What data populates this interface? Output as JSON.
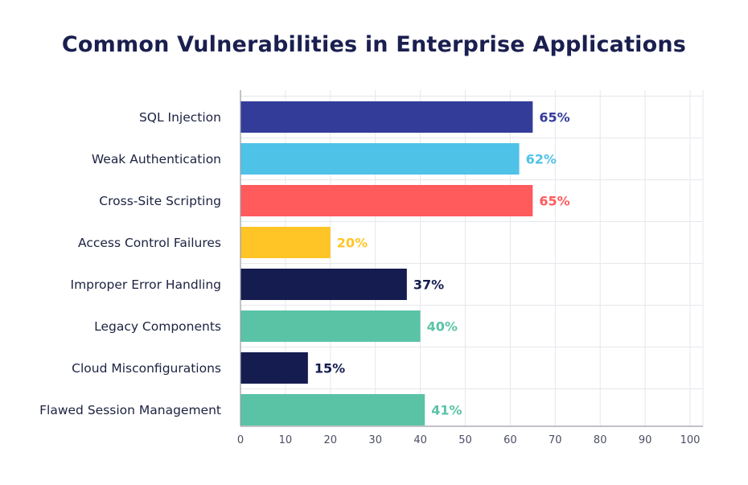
{
  "chart_data": {
    "type": "bar",
    "orientation": "horizontal",
    "title": "Common Vulnerabilities in Enterprise Applications",
    "categories": [
      "SQL Injection",
      "Weak Authentication",
      "Cross-Site Scripting",
      "Access Control Failures",
      "Improper Error Handling",
      "Legacy Components",
      "Cloud Misconfigurations",
      "Flawed Session Management"
    ],
    "values": [
      65,
      62,
      65,
      20,
      37,
      40,
      15,
      41
    ],
    "value_labels": [
      "65%",
      "62%",
      "65%",
      "20%",
      "37%",
      "40%",
      "15%",
      "41%"
    ],
    "colors": [
      "#343c9a",
      "#4fc2e8",
      "#ff5a5c",
      "#ffc526",
      "#151c4f",
      "#5ac3a6",
      "#151c4f",
      "#5ac3a6"
    ],
    "xlim": [
      0,
      100
    ],
    "xticks": [
      0,
      10,
      20,
      30,
      40,
      50,
      60,
      70,
      80,
      90,
      100
    ],
    "grid": true,
    "xlabel": "",
    "ylabel": ""
  }
}
